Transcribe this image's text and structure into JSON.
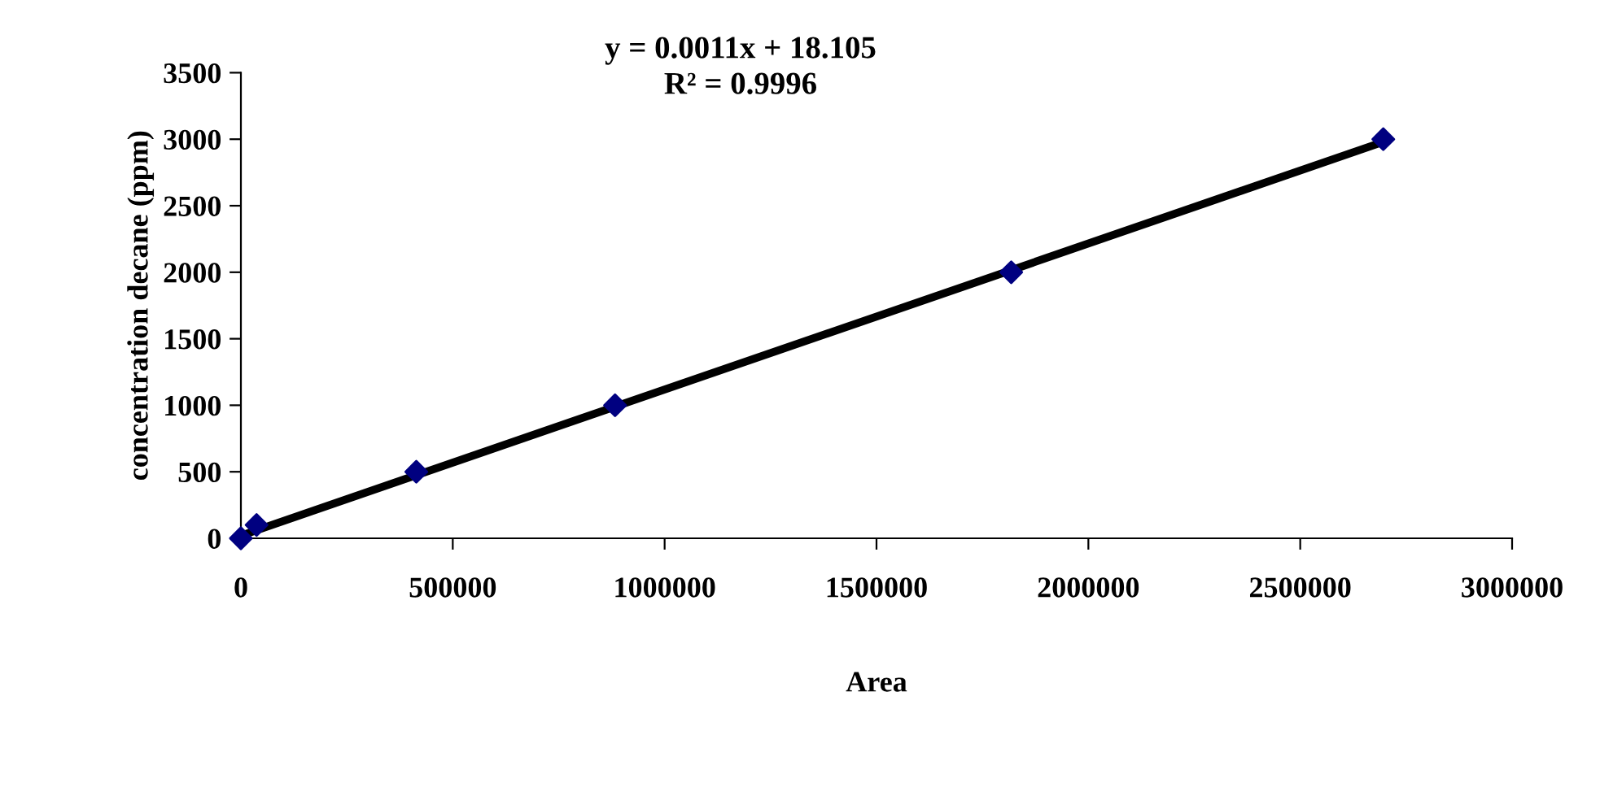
{
  "chart_data": {
    "type": "scatter",
    "xlabel": "Area",
    "ylabel": "concentration decane (ppm)",
    "xlim": [
      0,
      3000000
    ],
    "xticks": [
      0,
      500000,
      1000000,
      1500000,
      2000000,
      2500000,
      3000000
    ],
    "ylim": [
      0,
      3500
    ],
    "yticks": [
      0,
      500,
      1000,
      1500,
      2000,
      2500,
      3000,
      3500
    ],
    "grid": false,
    "legend": false,
    "series": [
      {
        "color": "#000080",
        "marker": "diamond",
        "x": [
          0,
          37000,
          414000,
          883000,
          1818000,
          2696000
        ],
        "values": [
          0,
          100,
          500,
          1000,
          2000,
          3000
        ]
      },
      {
        "type": "line",
        "color": "#000000",
        "marker": "none",
        "line_style": "solid",
        "x": [
          0,
          2696000
        ],
        "values": [
          20,
          2980
        ]
      }
    ],
    "annotations": [
      "y = 0.0011x + 18.105",
      "R² = 0.9996"
    ]
  }
}
